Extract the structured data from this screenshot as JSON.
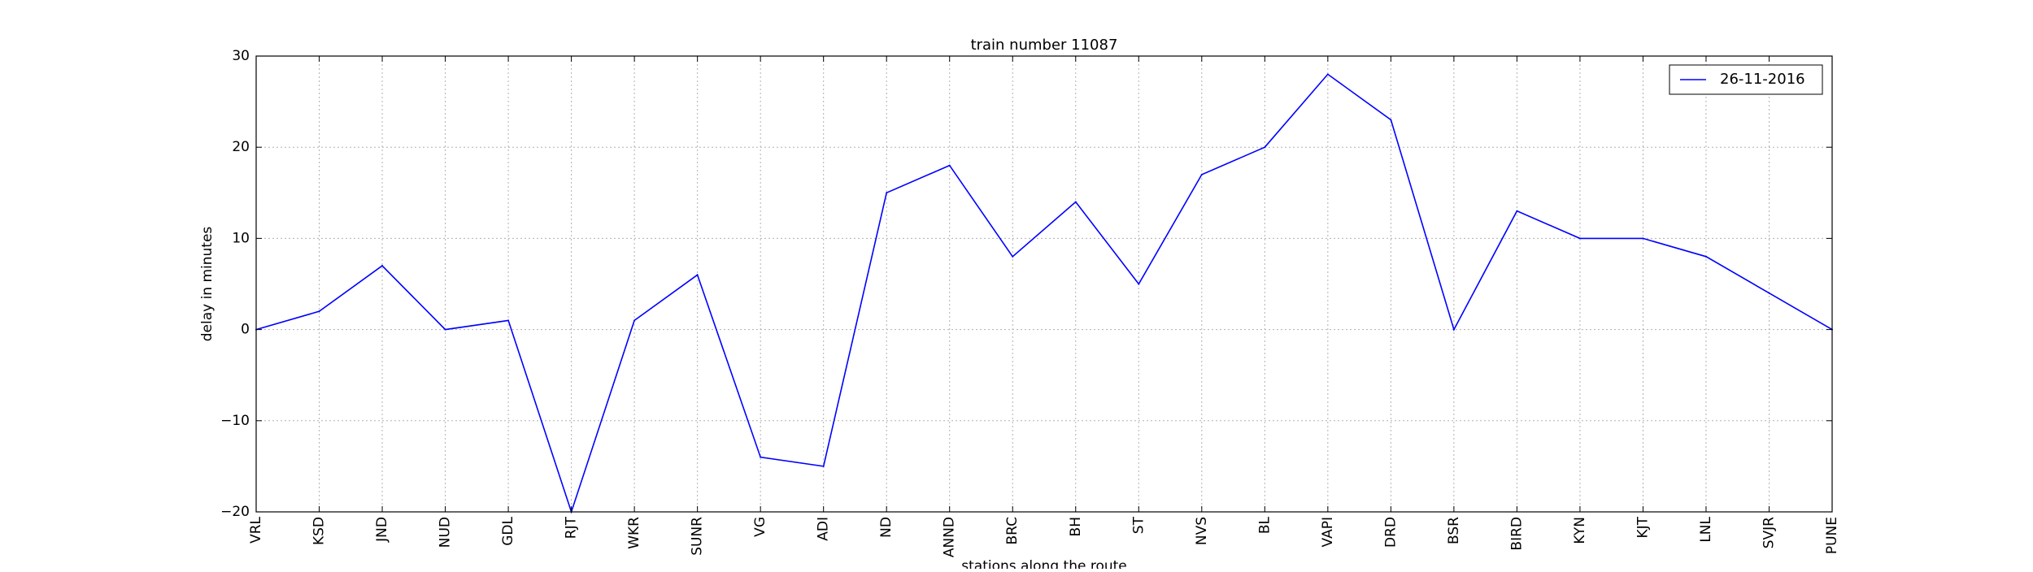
{
  "chart_data": {
    "type": "line",
    "title": "train number 11087",
    "xlabel": "stations along the route",
    "ylabel": "delay in minutes",
    "ylim": [
      -20,
      30
    ],
    "yticks": [
      -20,
      -10,
      0,
      10,
      20,
      30
    ],
    "ytick_labels": [
      "−20",
      "−10",
      "0",
      "10",
      "20",
      "30"
    ],
    "grid": true,
    "legend_position": "top-right",
    "categories": [
      "VRL",
      "KSD",
      "JND",
      "NUD",
      "GDL",
      "RJT",
      "WKR",
      "SUNR",
      "VG",
      "ADI",
      "ND",
      "ANND",
      "BRC",
      "BH",
      "ST",
      "NVS",
      "BL",
      "VAPI",
      "DRD",
      "BSR",
      "BIRD",
      "KYN",
      "KJT",
      "LNL",
      "SVJR",
      "PUNE"
    ],
    "series": [
      {
        "name": "26-11-2016",
        "color": "#0000ff",
        "values": [
          0,
          2,
          7,
          0,
          1,
          -20,
          1,
          6,
          -14,
          -15,
          15,
          18,
          8,
          14,
          5,
          17,
          20,
          28,
          23,
          0,
          13,
          10,
          10,
          8,
          4,
          0
        ]
      }
    ]
  }
}
